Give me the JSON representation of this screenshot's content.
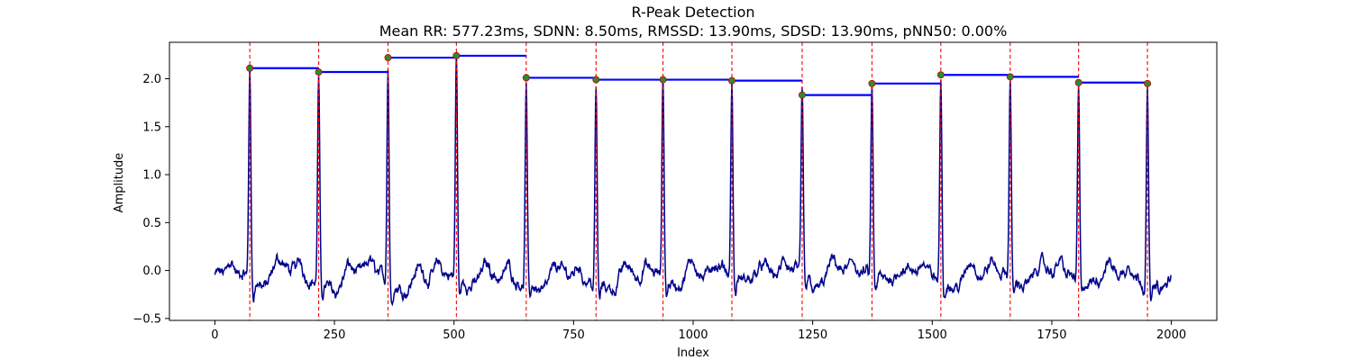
{
  "chart_data": {
    "type": "line",
    "title": "R-Peak Detection",
    "subtitle": "Mean RR: 577.23ms, SDNN: 8.50ms, RMSSD: 13.90ms, SDSD: 13.90ms, pNN50: 0.00%",
    "xlabel": "Index",
    "ylabel": "Amplitude",
    "xlim": [
      -95,
      2095
    ],
    "ylim": [
      -0.52,
      2.38
    ],
    "xticks": [
      0,
      250,
      500,
      750,
      1000,
      1250,
      1500,
      1750,
      2000
    ],
    "yticks": [
      -0.5,
      0.0,
      0.5,
      1.0,
      1.5,
      2.0
    ],
    "xtick_labels": [
      "0",
      "250",
      "500",
      "750",
      "1000",
      "1250",
      "1500",
      "1750",
      "2000"
    ],
    "ytick_labels": [
      "−0.5",
      "0.0",
      "0.5",
      "1.0",
      "1.5",
      "2.0"
    ],
    "grid": false,
    "signal": {
      "color": "#00008b",
      "length": 2000,
      "baseline": -0.05
    },
    "r_peaks": {
      "color": "#2e8b2e",
      "edge_color": "#cc0000",
      "x": [
        73,
        217,
        362,
        505,
        651,
        797,
        937,
        1081,
        1228,
        1374,
        1518,
        1663,
        1806,
        1950
      ],
      "y": [
        2.11,
        2.07,
        2.22,
        2.24,
        2.01,
        1.99,
        1.99,
        1.98,
        1.83,
        1.95,
        2.04,
        2.02,
        1.96,
        1.95
      ]
    },
    "peak_lines": {
      "color": "#ff0000",
      "style": "dashed"
    },
    "rr_segments": {
      "color": "#0000ff",
      "x_start": [
        73,
        217,
        362,
        505,
        651,
        797,
        937,
        1081,
        1228,
        1374,
        1518,
        1663,
        1806
      ],
      "x_end": [
        217,
        362,
        505,
        651,
        797,
        937,
        1081,
        1228,
        1374,
        1518,
        1663,
        1806,
        1950
      ],
      "y": [
        2.11,
        2.07,
        2.22,
        2.24,
        2.01,
        1.99,
        1.99,
        1.98,
        1.83,
        1.95,
        2.04,
        2.02,
        1.96
      ]
    }
  }
}
